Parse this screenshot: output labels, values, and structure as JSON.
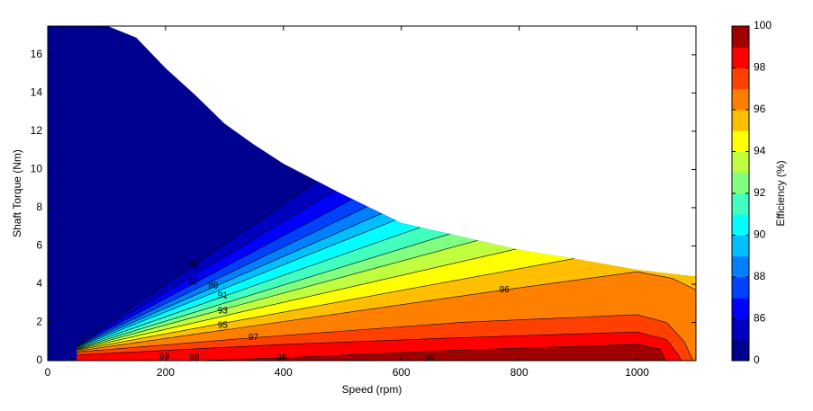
{
  "chart_data": {
    "type": "contourf",
    "xlabel": "Speed  (rpm)",
    "ylabel": "Shaft Torque  (Nm)",
    "xlim": [
      0,
      1100
    ],
    "ylim": [
      0,
      17.5
    ],
    "xticks": [
      0,
      200,
      400,
      600,
      800,
      1000
    ],
    "yticks": [
      0,
      2,
      4,
      6,
      8,
      10,
      12,
      14,
      16
    ],
    "region": {
      "x": [
        0,
        0,
        102,
        150,
        200,
        250,
        300,
        350,
        400,
        450,
        500,
        600,
        700,
        800,
        900,
        1000,
        1100,
        1100
      ],
      "y": [
        0,
        17.5,
        17.5,
        16.9,
        15.3,
        13.9,
        12.4,
        11.3,
        10.3,
        9.5,
        8.7,
        7.2,
        6.5,
        5.8,
        5.3,
        4.75,
        4.4,
        0
      ]
    },
    "contours": [
      {
        "level": 85,
        "x": [
          50,
          461
        ],
        "y": [
          0.85,
          9.46
        ]
      },
      {
        "level": 86,
        "x": [
          50,
          487
        ],
        "y": [
          0.82,
          8.9
        ]
      },
      {
        "level": 87,
        "x": [
          50,
          514
        ],
        "y": [
          0.79,
          8.4
        ]
      },
      {
        "level": 88,
        "x": [
          50,
          542
        ],
        "y": [
          0.76,
          8.05
        ]
      },
      {
        "level": 89,
        "x": [
          50,
          567
        ],
        "y": [
          0.73,
          7.7
        ]
      },
      {
        "level": 90,
        "x": [
          50,
          598
        ],
        "y": [
          0.7,
          7.45
        ]
      },
      {
        "level": 91,
        "x": [
          50,
          644
        ],
        "y": [
          0.67,
          7.1
        ]
      },
      {
        "level": 92,
        "x": [
          50,
          690
        ],
        "y": [
          0.64,
          6.7
        ]
      },
      {
        "level": 93,
        "x": [
          50,
          743
        ],
        "y": [
          0.61,
          6.4
        ]
      },
      {
        "level": 94,
        "x": [
          50,
          804
        ],
        "y": [
          0.58,
          5.9
        ]
      },
      {
        "level": 95,
        "x": [
          50,
          895
        ],
        "y": [
          0.55,
          5.35
        ]
      },
      {
        "level": 96,
        "x": [
          50,
          775,
          1000,
          1060,
          1100
        ],
        "y": [
          0.5,
          3.7,
          4.65,
          4.3,
          3.7
        ]
      },
      {
        "level": 97,
        "x": [
          50,
          349,
          700,
          1000,
          1050,
          1080,
          1095
        ],
        "y": [
          0.45,
          1.2,
          2.0,
          2.4,
          2.0,
          1.0,
          0
        ]
      },
      {
        "level": 98,
        "x": [
          50,
          400,
          700,
          1000,
          1050,
          1070,
          1075
        ],
        "y": [
          0.3,
          0.85,
          1.2,
          1.5,
          1.1,
          0.3,
          0
        ]
      },
      {
        "level": 99,
        "x": [
          250,
          400,
          700,
          1000,
          1040,
          1048
        ],
        "y": [
          0,
          0.15,
          0.55,
          0.85,
          0.6,
          0
        ]
      }
    ],
    "contour_labels": [
      {
        "text": "85",
        "x": 247,
        "y": 5.0
      },
      {
        "text": "87",
        "x": 247,
        "y": 4.1
      },
      {
        "text": "89",
        "x": 281,
        "y": 3.9
      },
      {
        "text": "91",
        "x": 297,
        "y": 3.4
      },
      {
        "text": "93",
        "x": 297,
        "y": 2.6
      },
      {
        "text": "95",
        "x": 297,
        "y": 1.85
      },
      {
        "text": "97",
        "x": 349,
        "y": 1.2
      },
      {
        "text": "96",
        "x": 775,
        "y": 3.7
      },
      {
        "text": "99",
        "x": 198,
        "y": 0.2
      },
      {
        "text": "98",
        "x": 249,
        "y": 0.15
      },
      {
        "text": "98",
        "x": 397,
        "y": 0.15
      },
      {
        "text": "99",
        "x": 648,
        "y": 0.1
      }
    ],
    "colorbar": {
      "label": "Efficiency (%)",
      "levels": [
        0,
        85,
        86,
        87,
        88,
        89,
        90,
        91,
        92,
        93,
        94,
        95,
        96,
        97,
        98,
        99,
        100
      ],
      "ticks": [
        0,
        86,
        88,
        90,
        92,
        94,
        96,
        98,
        100
      ],
      "colors": [
        "#000090",
        "#0000bf",
        "#0000ff",
        "#0040ff",
        "#0080ff",
        "#00bfff",
        "#00ffff",
        "#40ffbf",
        "#80ff80",
        "#bfff40",
        "#ffff00",
        "#ffbf00",
        "#ff8000",
        "#ff4000",
        "#ff0000",
        "#a00000"
      ]
    }
  }
}
